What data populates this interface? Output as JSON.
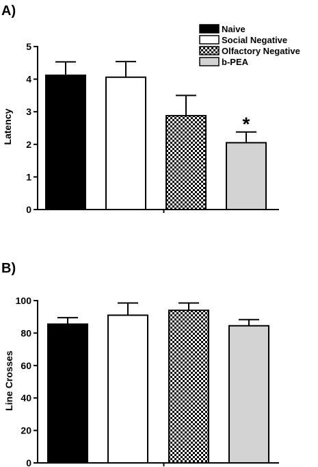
{
  "colors": {
    "naive": "#000000",
    "social_negative": "#ffffff",
    "olfactory_negative": "checkerboard",
    "b_pea": "#d3d3d3"
  },
  "legend": [
    "Naive",
    "Social Negative",
    "Olfactory Negative",
    "b-PEA"
  ],
  "chart_data": [
    {
      "type": "bar",
      "panel_label": "A)",
      "ylabel": "Latency",
      "ylim": [
        0,
        5
      ],
      "yticks": [
        0,
        1,
        2,
        3,
        4,
        5
      ],
      "categories": [
        "Naive",
        "Social Negative",
        "Olfactory Negative",
        "b-PEA"
      ],
      "values": [
        4.12,
        4.06,
        2.88,
        2.05
      ],
      "errors": [
        0.41,
        0.48,
        0.62,
        0.33
      ],
      "annotations": [
        {
          "category": "b-PEA",
          "text": "*"
        }
      ],
      "legend_position": "top-right"
    },
    {
      "type": "bar",
      "panel_label": "B)",
      "ylabel": "Line Crosses",
      "ylim": [
        0,
        100
      ],
      "yticks": [
        0,
        20,
        40,
        60,
        80,
        100
      ],
      "categories": [
        "Naive",
        "Social Negative",
        "Olfactory Negative",
        "b-PEA"
      ],
      "values": [
        85.5,
        91.0,
        94.0,
        84.5
      ],
      "errors": [
        4.0,
        7.5,
        4.5,
        3.8
      ],
      "annotations": []
    }
  ]
}
